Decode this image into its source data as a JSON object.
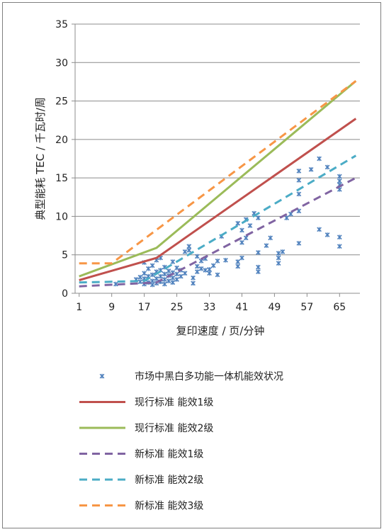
{
  "chart_data": {
    "type": "line",
    "xlabel": "复印速度 / 页/分钟",
    "ylabel": "典型能耗 TEC / 千瓦时/周",
    "xlim": [
      0,
      70
    ],
    "ylim": [
      0,
      35
    ],
    "xticks": [
      1,
      9,
      17,
      25,
      33,
      41,
      49,
      57,
      65
    ],
    "yticks": [
      0,
      5,
      10,
      15,
      20,
      25,
      30,
      35
    ],
    "grid": "horizontal",
    "legend_position": "bottom",
    "scatter": {
      "name": "市场中黑白多功能一体机能效状况",
      "color": "#4f81bd",
      "points": [
        [
          10,
          1.2
        ],
        [
          15,
          1.8
        ],
        [
          16,
          1.5
        ],
        [
          16,
          2.1
        ],
        [
          17,
          1.2
        ],
        [
          17,
          1.9
        ],
        [
          17,
          2.6
        ],
        [
          17,
          4.0
        ],
        [
          18,
          1.4
        ],
        [
          18,
          2.2
        ],
        [
          18,
          3.2
        ],
        [
          19,
          1.1
        ],
        [
          19,
          1.6
        ],
        [
          19,
          2.4
        ],
        [
          19,
          3.6
        ],
        [
          20,
          1.3
        ],
        [
          20,
          1.9
        ],
        [
          20,
          2.8
        ],
        [
          20,
          4.3
        ],
        [
          21,
          1.5
        ],
        [
          21,
          2.2
        ],
        [
          21,
          3.0
        ],
        [
          21,
          4.6
        ],
        [
          22,
          1.2
        ],
        [
          22,
          1.8
        ],
        [
          22,
          2.5
        ],
        [
          22,
          3.4
        ],
        [
          23,
          1.6
        ],
        [
          23,
          2.3
        ],
        [
          23,
          2.9
        ],
        [
          24,
          1.4
        ],
        [
          24,
          2.0
        ],
        [
          24,
          2.7
        ],
        [
          24,
          4.1
        ],
        [
          25,
          1.8
        ],
        [
          25,
          2.5
        ],
        [
          25,
          3.3
        ],
        [
          26,
          2.2
        ],
        [
          26,
          3.0
        ],
        [
          27,
          2.6
        ],
        [
          27,
          5.4
        ],
        [
          28,
          5.6
        ],
        [
          28,
          6.1
        ],
        [
          29,
          1.3
        ],
        [
          29,
          2.0
        ],
        [
          30,
          2.8
        ],
        [
          30,
          3.5
        ],
        [
          30,
          4.8
        ],
        [
          31,
          3.2
        ],
        [
          31,
          4.2
        ],
        [
          32,
          3.0
        ],
        [
          32,
          4.5
        ],
        [
          33,
          2.6
        ],
        [
          33,
          3.1
        ],
        [
          34,
          3.6
        ],
        [
          35,
          2.4
        ],
        [
          35,
          4.2
        ],
        [
          36,
          7.4
        ],
        [
          37,
          4.3
        ],
        [
          40,
          3.5
        ],
        [
          40,
          4.1
        ],
        [
          40,
          9.1
        ],
        [
          41,
          4.6
        ],
        [
          41,
          6.6
        ],
        [
          41,
          8.2
        ],
        [
          42,
          7.2
        ],
        [
          42,
          9.6
        ],
        [
          43,
          8.8
        ],
        [
          44,
          10.4
        ],
        [
          45,
          2.8
        ],
        [
          45,
          3.4
        ],
        [
          45,
          5.3
        ],
        [
          45,
          9.8
        ],
        [
          47,
          6.2
        ],
        [
          48,
          7.2
        ],
        [
          50,
          3.9
        ],
        [
          50,
          4.6
        ],
        [
          50,
          5.2
        ],
        [
          51,
          5.4
        ],
        [
          52,
          9.8
        ],
        [
          53,
          10.3
        ],
        [
          55,
          10.7
        ],
        [
          55,
          12.9
        ],
        [
          55,
          14.7
        ],
        [
          55,
          15.9
        ],
        [
          55,
          6.5
        ],
        [
          58,
          16.1
        ],
        [
          60,
          8.3
        ],
        [
          60,
          17.5
        ],
        [
          62,
          7.6
        ],
        [
          62,
          16.4
        ],
        [
          65,
          6.1
        ],
        [
          65,
          7.3
        ],
        [
          65,
          13.5
        ],
        [
          65,
          14.1
        ],
        [
          65,
          14.6
        ],
        [
          65,
          15.2
        ]
      ]
    },
    "series": [
      {
        "name": "现行标准 能效1级",
        "style": "solid",
        "color": "#c0504d",
        "x": [
          1,
          20,
          69
        ],
        "y": [
          1.7,
          4.6,
          22.7
        ]
      },
      {
        "name": "现行标准 能效2级",
        "style": "solid",
        "color": "#9bbb59",
        "x": [
          1,
          20,
          69
        ],
        "y": [
          2.2,
          5.9,
          27.6
        ]
      },
      {
        "name": "新标准 能效1级",
        "style": "dashed",
        "color": "#8064a2",
        "x": [
          1,
          20,
          69
        ],
        "y": [
          0.9,
          1.4,
          15.0
        ]
      },
      {
        "name": "新标准 能效2级",
        "style": "dashed",
        "color": "#4bacc6",
        "x": [
          1,
          17,
          69
        ],
        "y": [
          1.4,
          1.6,
          17.9
        ]
      },
      {
        "name": "新标准 能效3级",
        "style": "dashed",
        "color": "#f79646",
        "x": [
          1,
          9,
          69
        ],
        "y": [
          3.9,
          3.9,
          27.6
        ]
      }
    ]
  }
}
